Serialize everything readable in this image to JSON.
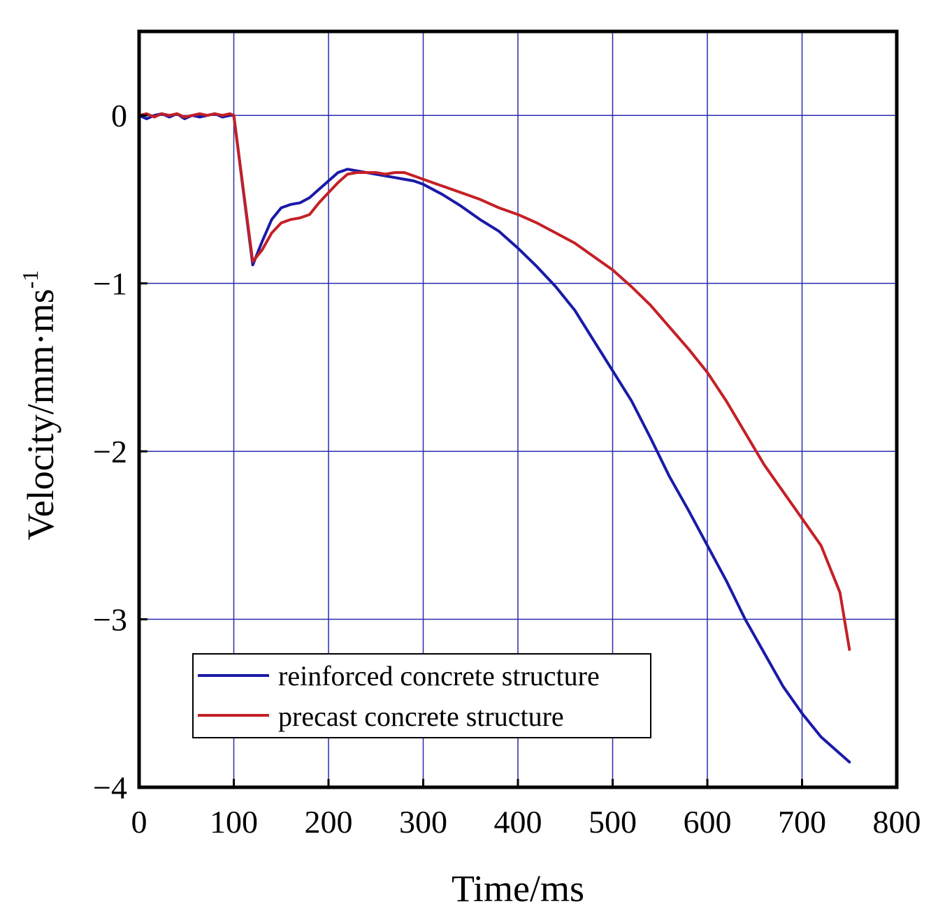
{
  "chart_data": {
    "type": "line",
    "title": "",
    "xlabel": "Time/ms",
    "ylabel_main": "Velocity/mm·ms",
    "ylabel_sup": "-1",
    "xlim": [
      0,
      800
    ],
    "ylim": [
      -4,
      0.5
    ],
    "x_ticks": [
      0,
      100,
      200,
      300,
      400,
      500,
      600,
      700,
      800
    ],
    "x_tick_labels": [
      "0",
      "100",
      "200",
      "300",
      "400",
      "500",
      "600",
      "700",
      "800"
    ],
    "y_ticks": [
      0,
      -1,
      -2,
      -3,
      -4
    ],
    "y_tick_labels": [
      "0",
      "−1",
      "−2",
      "−3",
      "−4"
    ],
    "grid": true,
    "legend_position": "bottom-left",
    "series": [
      {
        "name": "reinforced concrete structure",
        "color": "#1a1aa8",
        "x": [
          0,
          8,
          16,
          24,
          32,
          40,
          48,
          56,
          64,
          72,
          80,
          88,
          96,
          100,
          110,
          120,
          130,
          140,
          150,
          160,
          170,
          180,
          190,
          200,
          210,
          220,
          230,
          240,
          250,
          260,
          270,
          280,
          290,
          300,
          320,
          340,
          360,
          380,
          400,
          420,
          440,
          460,
          480,
          500,
          520,
          540,
          560,
          580,
          600,
          620,
          640,
          660,
          680,
          700,
          720,
          740,
          750
        ],
        "y": [
          0,
          -0.02,
          0,
          0.01,
          -0.01,
          0.01,
          -0.02,
          0,
          -0.01,
          0,
          0.01,
          -0.01,
          0,
          0,
          -0.45,
          -0.89,
          -0.75,
          -0.62,
          -0.55,
          -0.53,
          -0.52,
          -0.49,
          -0.44,
          -0.39,
          -0.34,
          -0.32,
          -0.33,
          -0.34,
          -0.35,
          -0.36,
          -0.37,
          -0.38,
          -0.39,
          -0.41,
          -0.47,
          -0.54,
          -0.62,
          -0.69,
          -0.79,
          -0.9,
          -1.02,
          -1.16,
          -1.34,
          -1.52,
          -1.7,
          -1.92,
          -2.15,
          -2.35,
          -2.56,
          -2.77,
          -3.0,
          -3.2,
          -3.4,
          -3.56,
          -3.7,
          -3.8,
          -3.85
        ]
      },
      {
        "name": "precast concrete structure",
        "color": "#c42026",
        "x": [
          0,
          8,
          16,
          24,
          32,
          40,
          48,
          56,
          64,
          72,
          80,
          88,
          96,
          100,
          110,
          120,
          130,
          140,
          150,
          160,
          170,
          180,
          190,
          200,
          210,
          220,
          230,
          240,
          250,
          260,
          270,
          280,
          290,
          300,
          320,
          340,
          360,
          380,
          400,
          420,
          440,
          460,
          480,
          500,
          520,
          540,
          560,
          580,
          600,
          620,
          640,
          660,
          680,
          700,
          720,
          740,
          750
        ],
        "y": [
          0,
          0.01,
          -0.01,
          0.01,
          0,
          0.01,
          -0.01,
          0,
          0.01,
          0,
          0.01,
          0,
          0.01,
          0,
          -0.44,
          -0.87,
          -0.8,
          -0.7,
          -0.64,
          -0.62,
          -0.61,
          -0.59,
          -0.52,
          -0.46,
          -0.4,
          -0.35,
          -0.34,
          -0.34,
          -0.34,
          -0.35,
          -0.34,
          -0.34,
          -0.36,
          -0.38,
          -0.42,
          -0.46,
          -0.5,
          -0.55,
          -0.59,
          -0.64,
          -0.7,
          -0.76,
          -0.84,
          -0.92,
          -1.02,
          -1.13,
          -1.26,
          -1.39,
          -1.53,
          -1.7,
          -1.89,
          -2.08,
          -2.24,
          -2.4,
          -2.56,
          -2.84,
          -3.18
        ]
      }
    ]
  }
}
